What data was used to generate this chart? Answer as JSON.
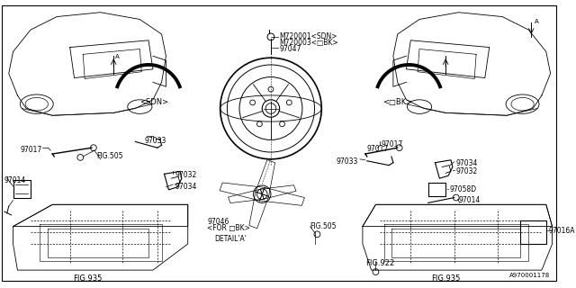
{
  "bg_color": "#ffffff",
  "fig_width": 6.4,
  "fig_height": 3.2,
  "dpi": 100,
  "labels": {
    "M720001_SDN": "M720001<SDN>",
    "M720003_DBK": "M720003<□BK>",
    "97047": "97047",
    "97033": "97033",
    "97017": "97017",
    "97032": "97032",
    "97034": "97034",
    "97014": "97014",
    "97058D": "97058D",
    "97016A": "97016A",
    "97046": "97046",
    "fig505": "FIG.505",
    "fig935": "FIG.935",
    "fig922": "FIG.922",
    "detail_a": "DETAIL'A'",
    "for_dbk": "<FOR □BK>",
    "sdn": "<SDN>",
    "dbk": "<□BK>",
    "watermark": "A970001178"
  },
  "lw": 0.6
}
